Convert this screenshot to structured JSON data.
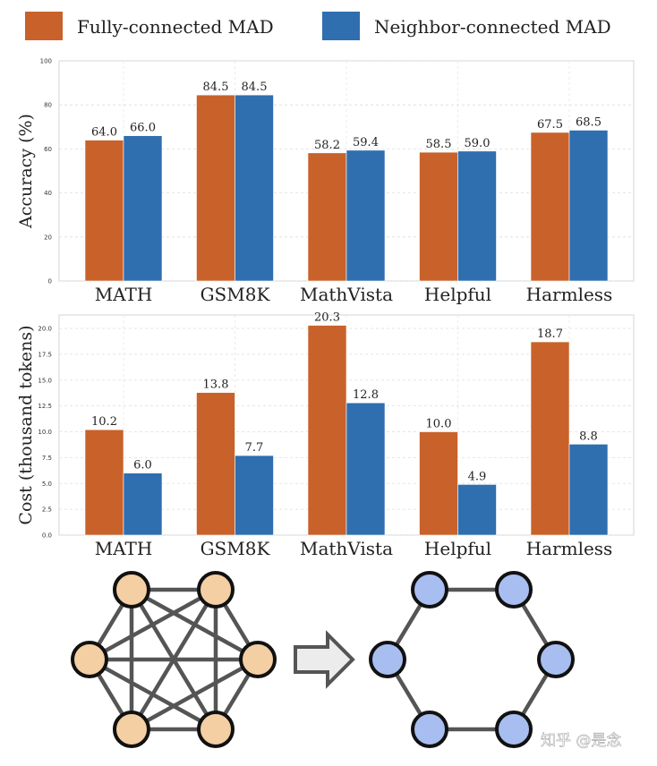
{
  "colors": {
    "fully": "#C8622A",
    "neighbor": "#2F6EAF",
    "node_left": "#F3CFA3",
    "node_right": "#A8BEF0",
    "edge": "#555555"
  },
  "legend": {
    "items": [
      {
        "label": "Fully-connected MAD",
        "color": "#C8622A"
      },
      {
        "label": "Neighbor-connected MAD",
        "color": "#2F6EAF"
      }
    ]
  },
  "chart_data": [
    {
      "type": "bar",
      "title": "",
      "xlabel": "",
      "ylabel": "Accuracy (%)",
      "ylim": [
        0,
        100
      ],
      "yticks": [
        "0",
        "20",
        "40",
        "60",
        "80",
        "100"
      ],
      "ytick_values": [
        0,
        20,
        40,
        60,
        80,
        100
      ],
      "grid": true,
      "categories": [
        "MATH",
        "GSM8K",
        "MathVista",
        "Helpful",
        "Harmless"
      ],
      "series": [
        {
          "name": "Fully-connected MAD",
          "values": [
            64.0,
            84.5,
            58.2,
            58.5,
            67.5
          ],
          "labels": [
            "64.0",
            "84.5",
            "58.2",
            "58.5",
            "67.5"
          ]
        },
        {
          "name": "Neighbor-connected MAD",
          "values": [
            66.0,
            84.5,
            59.4,
            59.0,
            68.5
          ],
          "labels": [
            "66.0",
            "84.5",
            "59.4",
            "59.0",
            "68.5"
          ]
        }
      ]
    },
    {
      "type": "bar",
      "title": "",
      "xlabel": "",
      "ylabel": "Cost (thousand tokens)",
      "ylim": [
        0,
        21.3
      ],
      "yticks": [
        "0.0",
        "2.5",
        "5.0",
        "7.5",
        "10.0",
        "12.5",
        "15.0",
        "17.5",
        "20.0"
      ],
      "ytick_values": [
        0,
        2.5,
        5,
        7.5,
        10,
        12.5,
        15,
        17.5,
        20
      ],
      "grid": true,
      "categories": [
        "MATH",
        "GSM8K",
        "MathVista",
        "Helpful",
        "Harmless"
      ],
      "series": [
        {
          "name": "Fully-connected MAD",
          "values": [
            10.2,
            13.8,
            20.3,
            10.0,
            18.7
          ],
          "labels": [
            "10.2",
            "13.8",
            "20.3",
            "10.0",
            "18.7"
          ]
        },
        {
          "name": "Neighbor-connected MAD",
          "values": [
            6.0,
            7.7,
            12.8,
            4.9,
            8.8
          ],
          "labels": [
            "6.0",
            "7.7",
            "12.8",
            "4.9",
            "8.8"
          ]
        }
      ]
    }
  ],
  "diagram": {
    "left_graph": "fully-connected",
    "right_graph": "neighbor-connected",
    "node_count": 6
  },
  "watermark": "知乎 @是念"
}
